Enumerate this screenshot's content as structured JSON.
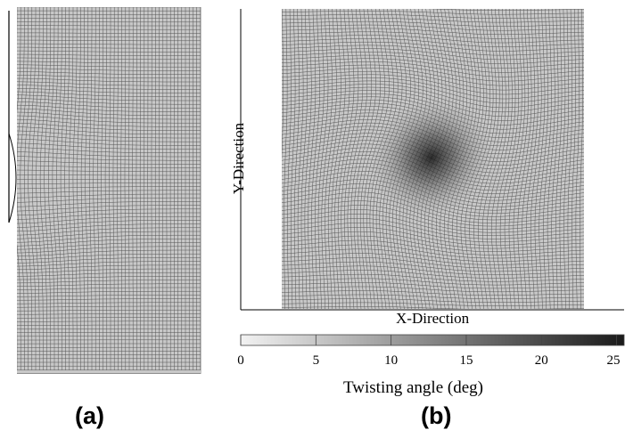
{
  "panels": {
    "a": {
      "label": "(a)"
    },
    "b": {
      "label": "(b)",
      "xlabel": "X-Direction",
      "ylabel": "Y-Direction"
    }
  },
  "colorbar": {
    "title": "Twisting angle (deg)",
    "min": 0,
    "max": 25.5,
    "ticks": [
      "0",
      "5",
      "10",
      "15",
      "20",
      "25"
    ],
    "color_low": "#f2f2f2",
    "color_high": "#1a1a1a"
  },
  "mesh_color": "#555555"
}
